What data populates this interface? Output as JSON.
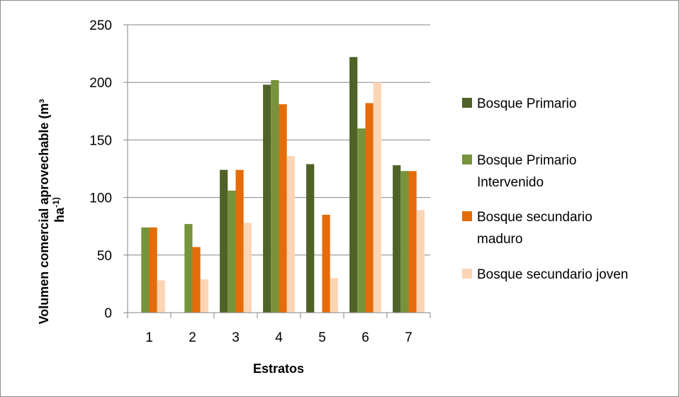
{
  "chart_data": {
    "type": "bar",
    "categories": [
      "1",
      "2",
      "3",
      "4",
      "5",
      "6",
      "7"
    ],
    "series": [
      {
        "name": "Bosque Primario",
        "color": "#4f6228",
        "values": [
          0,
          0,
          124,
          198,
          129,
          222,
          128
        ]
      },
      {
        "name": "Bosque Primario Intervenido",
        "color": "#77933c",
        "values": [
          74,
          77,
          106,
          202,
          0,
          160,
          123
        ]
      },
      {
        "name": "Bosque secundario maduro",
        "color": "#e46c0a",
        "values": [
          74,
          57,
          124,
          181,
          85,
          182,
          123
        ]
      },
      {
        "name": "Bosque secundario joven",
        "color": "#fcd5b5",
        "values": [
          28,
          29,
          78,
          136,
          30,
          200,
          89
        ]
      }
    ],
    "legend_lines": [
      [
        "Bosque Primario"
      ],
      [
        "Bosque Primario",
        "Intervenido"
      ],
      [
        "Bosque secundario",
        "maduro"
      ],
      [
        "Bosque secundario joven"
      ]
    ],
    "yticks": [
      "0",
      "50",
      "100",
      "150",
      "200",
      "250"
    ],
    "ylim": [
      0,
      250
    ],
    "xlabel": "Estratos",
    "ylabel_line1": "Volumen comercial aprovechable (m³",
    "ylabel_line2_base": "ha",
    "ylabel_line2_sup": "-1)",
    "grid": true,
    "legend_position": "right"
  }
}
